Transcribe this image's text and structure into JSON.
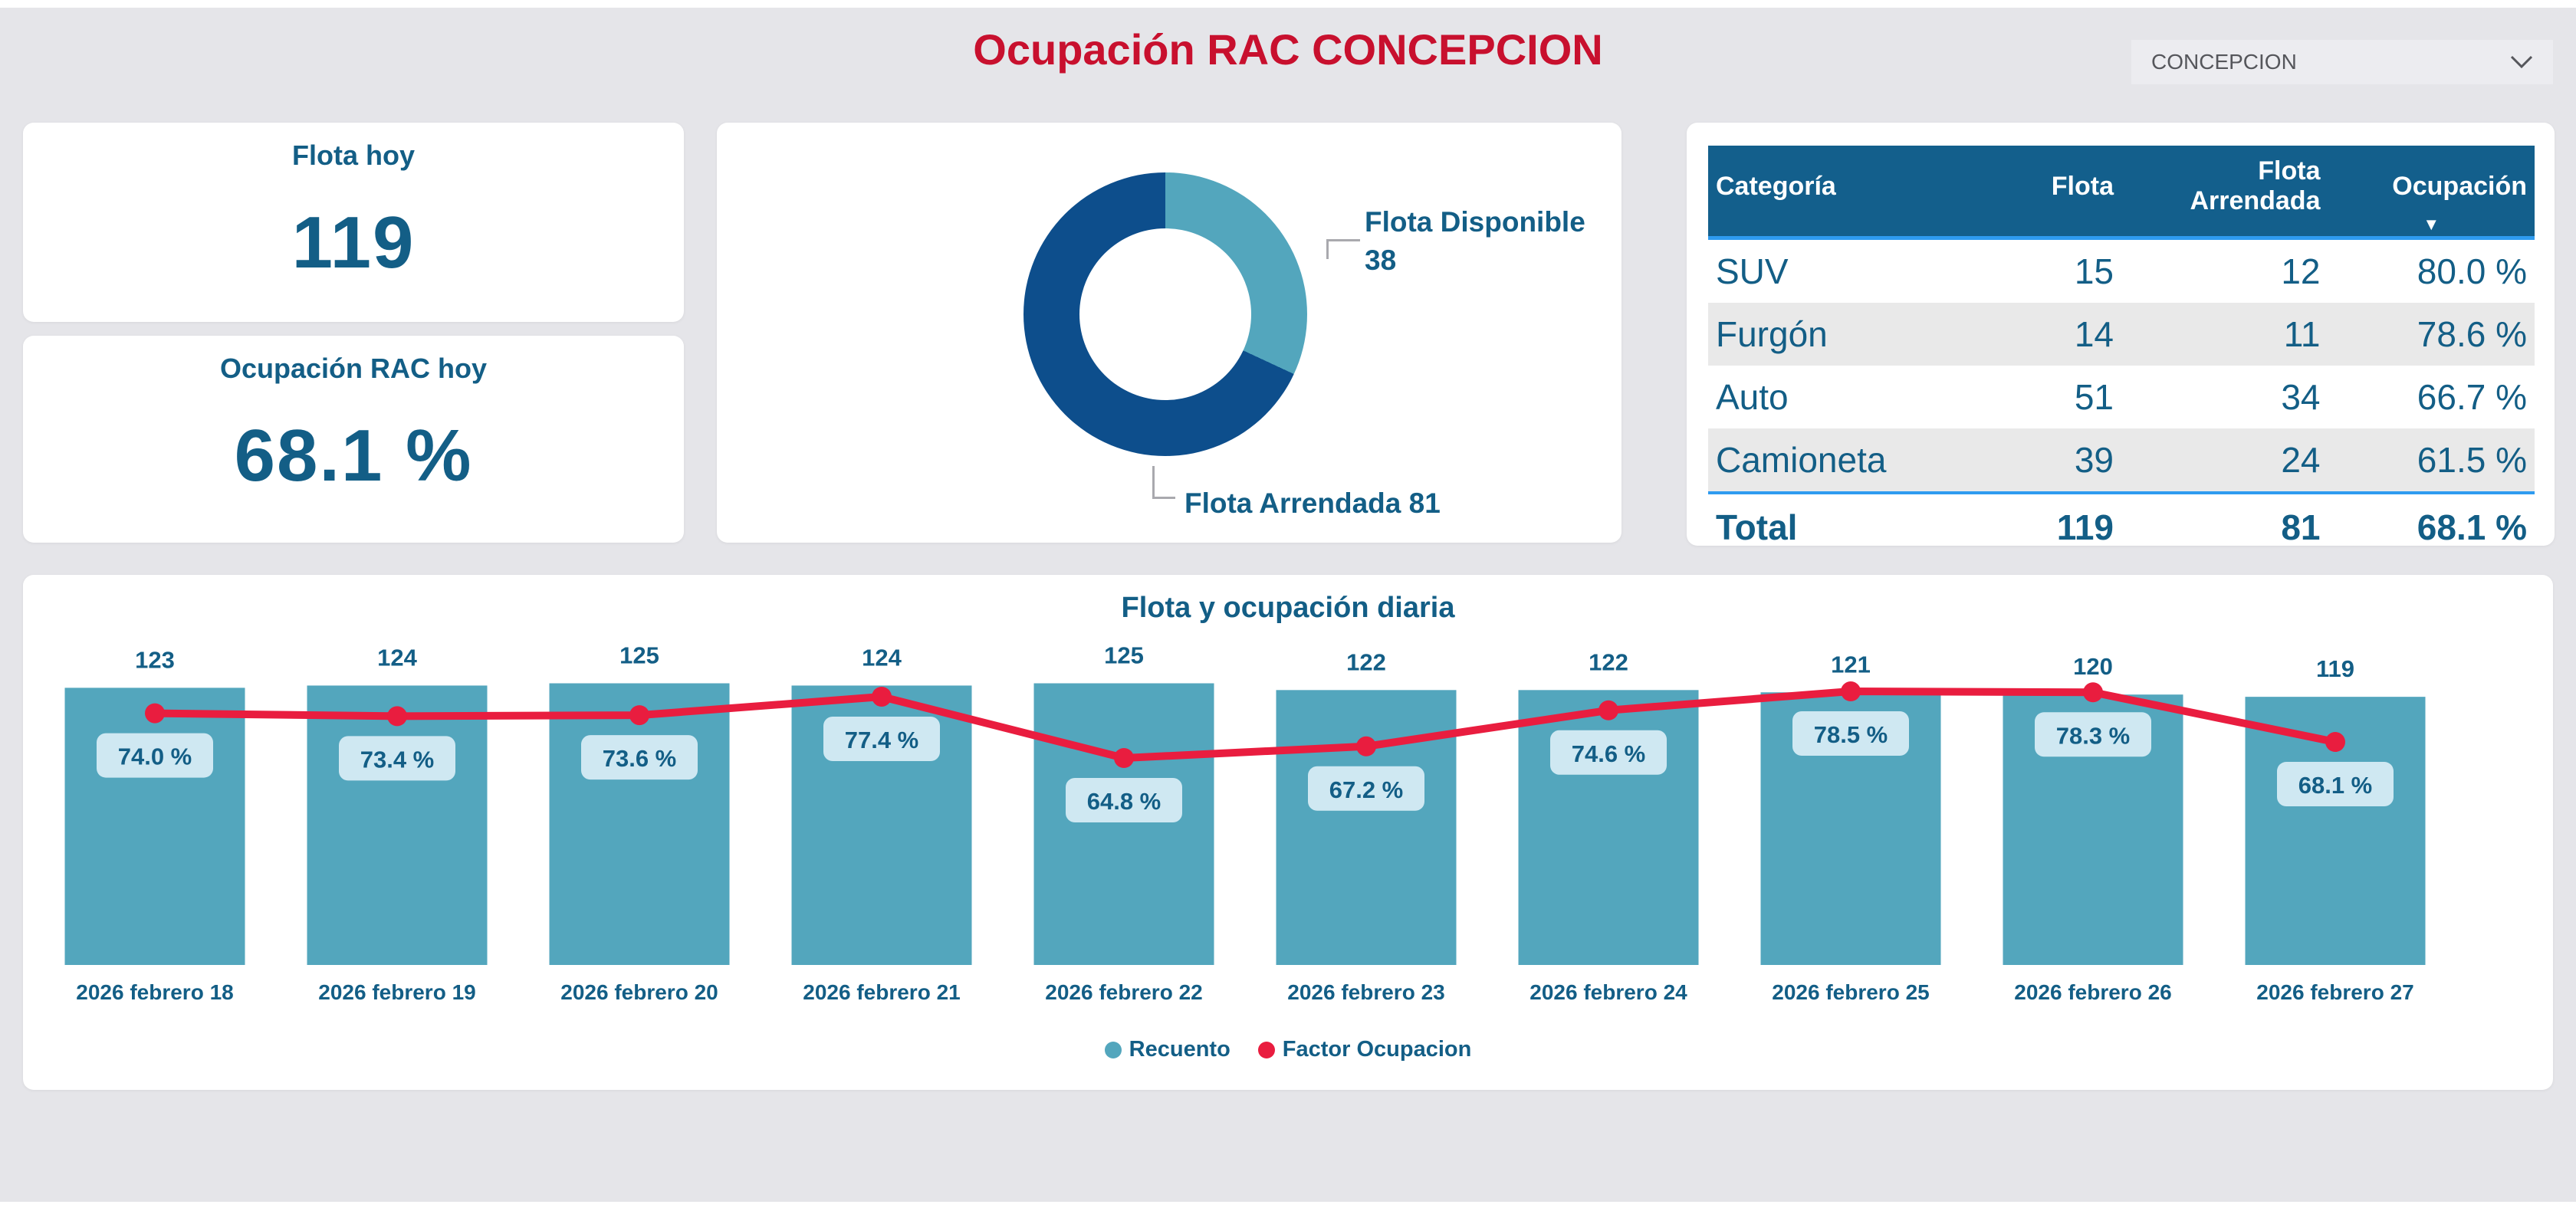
{
  "header": {
    "title": "Ocupación RAC CONCEPCION",
    "region_selector": {
      "value": "CONCEPCION",
      "icon": "chevron-down-icon"
    }
  },
  "kpi_cards": [
    {
      "title": "Flota hoy",
      "value": "119"
    },
    {
      "title": "Ocupación RAC hoy",
      "value": "68.1 %"
    }
  ],
  "donut": {
    "total": 119,
    "segments": [
      {
        "label": "Flota Disponible",
        "value": 38,
        "color": "#53A6BD",
        "label_lines": [
          "Flota Disponible",
          "38"
        ]
      },
      {
        "label": "Flota Arrendada",
        "value": 81,
        "color": "#0D4E8C",
        "label_lines": [
          "Flota Arrendada 81"
        ]
      }
    ]
  },
  "table": {
    "columns": [
      "Categoría",
      "Flota",
      "Flota Arrendada",
      "Ocupación"
    ],
    "sorted_column": "Ocupación",
    "sort_direction": "desc",
    "rows": [
      [
        "SUV",
        "15",
        "12",
        "80.0 %"
      ],
      [
        "Furgón",
        "14",
        "11",
        "78.6 %"
      ],
      [
        "Auto",
        "51",
        "34",
        "66.7 %"
      ],
      [
        "Camioneta",
        "39",
        "24",
        "61.5 %"
      ]
    ],
    "total_row": [
      "Total",
      "119",
      "81",
      "68.1 %"
    ]
  },
  "chart_data": {
    "type": "bar",
    "subtype": "bar-line-combo",
    "title": "Flota y ocupación diaria",
    "categories": [
      "2026 febrero 18",
      "2026 febrero 19",
      "2026 febrero 20",
      "2026 febrero 21",
      "2026 febrero 22",
      "2026 febrero 23",
      "2026 febrero 24",
      "2026 febrero 25",
      "2026 febrero 26",
      "2026 febrero 27"
    ],
    "series": [
      {
        "name": "Recuento",
        "type": "bar",
        "color": "#53A6BD",
        "values": [
          123,
          124,
          125,
          124,
          125,
          122,
          122,
          121,
          120,
          119
        ]
      },
      {
        "name": "Factor Ocupacion",
        "type": "line",
        "color": "#E91D3F",
        "unit": "%",
        "values": [
          74.0,
          73.4,
          73.6,
          77.4,
          64.8,
          67.2,
          74.6,
          78.5,
          78.3,
          68.1
        ]
      }
    ],
    "value_label_format": {
      "line": "0.0 %"
    },
    "bar_axis_min": 0,
    "grid": false,
    "legend_position": "bottom"
  },
  "colors": {
    "page_bg": "#E5E5E9",
    "card_bg": "#FFFFFF",
    "title_red": "#C8102E",
    "text_teal": "#135E86",
    "table_header_bg": "#135F8C",
    "table_header_accent": "#2E9BF0",
    "stripe_gray": "#E9E9E9",
    "bar_teal": "#53A6BD",
    "donut_navy": "#0D4E8C",
    "line_red": "#E91D3F",
    "chip_bg": "#CFE8F2"
  }
}
